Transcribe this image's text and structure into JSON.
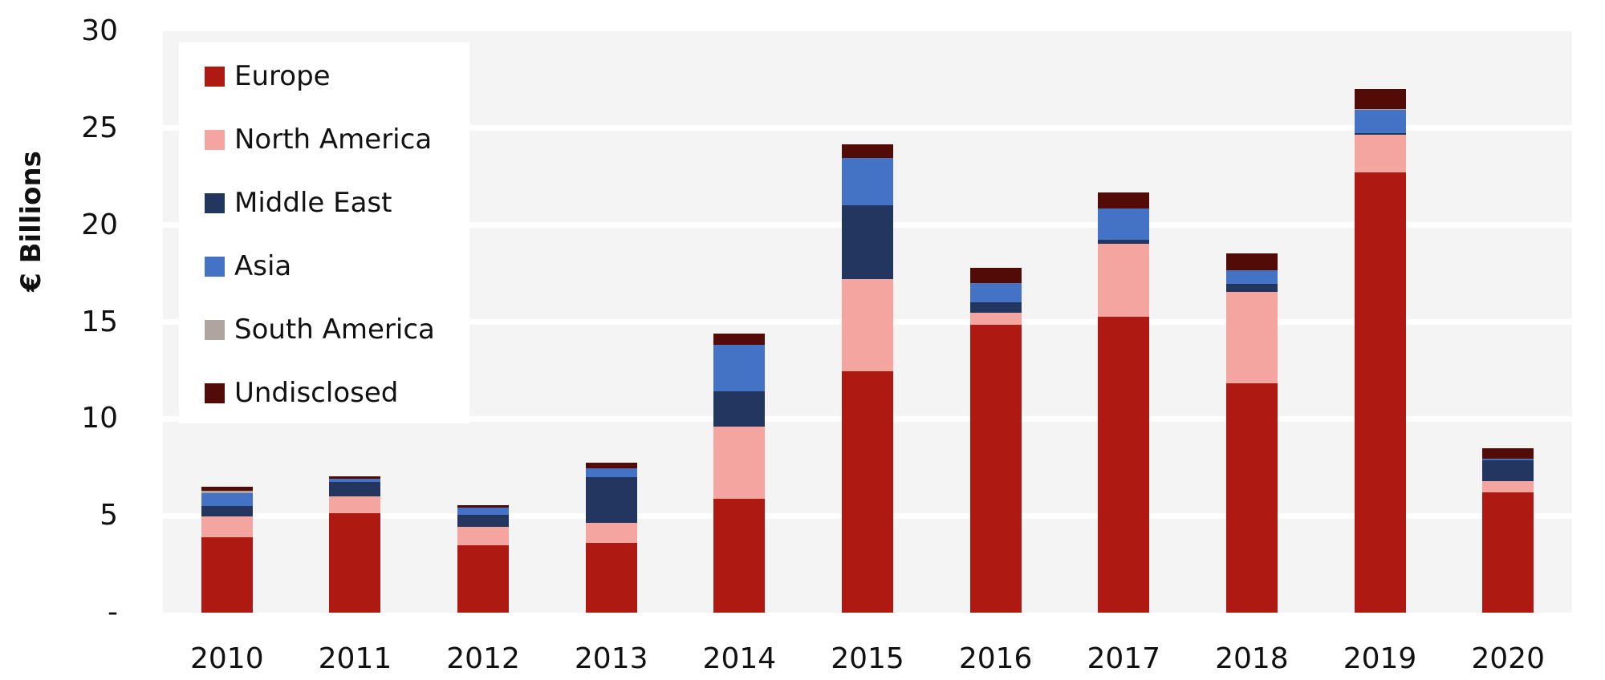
{
  "chart_data": {
    "type": "bar",
    "stacked": true,
    "title": "",
    "xlabel": "",
    "ylabel": "€ Billions",
    "ylim": [
      0,
      30
    ],
    "yticks": [
      0,
      5,
      10,
      15,
      20,
      25,
      30
    ],
    "ytick_labels": [
      "-",
      "5",
      "10",
      "15",
      "20",
      "25",
      "30"
    ],
    "grid": true,
    "legend_position": "upper-left-inside",
    "categories": [
      "2010",
      "2011",
      "2012",
      "2013",
      "2014",
      "2015",
      "2016",
      "2017",
      "2018",
      "2019",
      "2020"
    ],
    "series": [
      {
        "name": "Europe",
        "color": "#AE1A12",
        "values": [
          3.9,
          5.13,
          3.46,
          3.62,
          5.88,
          12.47,
          14.84,
          15.25,
          11.82,
          22.72,
          6.2
        ]
      },
      {
        "name": "North America",
        "color": "#F5A5A0",
        "values": [
          1.05,
          0.86,
          0.96,
          1.0,
          3.74,
          4.73,
          0.64,
          3.8,
          4.73,
          1.95,
          0.58
        ]
      },
      {
        "name": "Middle East",
        "color": "#22365F",
        "values": [
          0.55,
          0.75,
          0.64,
          2.36,
          1.82,
          3.84,
          0.52,
          0.21,
          0.41,
          0.08,
          1.07
        ]
      },
      {
        "name": "Asia",
        "color": "#4472C4",
        "values": [
          0.66,
          0.16,
          0.36,
          0.45,
          2.39,
          2.44,
          1.0,
          1.59,
          0.72,
          1.22,
          0.11
        ]
      },
      {
        "name": "South America",
        "color": "#AFA59E",
        "values": [
          0.12,
          0.0,
          0.0,
          0.0,
          0.0,
          0.0,
          0.0,
          0.0,
          0.0,
          0.03,
          0.0
        ]
      },
      {
        "name": "Undisclosed",
        "color": "#520B06",
        "values": [
          0.2,
          0.15,
          0.12,
          0.31,
          0.55,
          0.69,
          0.81,
          0.82,
          0.86,
          1.03,
          0.53
        ]
      }
    ]
  },
  "legend": {
    "items": [
      {
        "label": "Europe",
        "color": "#AE1A12"
      },
      {
        "label": "North America",
        "color": "#F5A5A0"
      },
      {
        "label": "Middle East",
        "color": "#22365F"
      },
      {
        "label": "Asia",
        "color": "#4472C4"
      },
      {
        "label": "South America",
        "color": "#AFA59E"
      },
      {
        "label": "Undisclosed",
        "color": "#520B06"
      }
    ]
  },
  "axis": {
    "y_title": "€ Billions"
  }
}
